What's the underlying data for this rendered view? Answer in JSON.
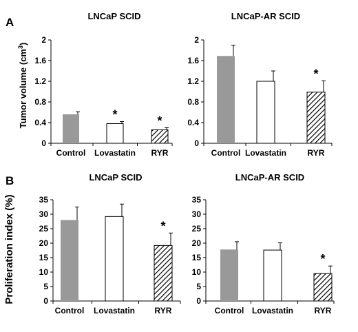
{
  "figure": {
    "panel_a_label": "A",
    "panel_b_label": "B",
    "a_ylabel_main": "Tumor volume (cm",
    "a_ylabel_sup": "3",
    "a_ylabel_close": ")",
    "b_ylabel": "Proliferation index (%)"
  },
  "colors": {
    "gray_fill": "#999999",
    "white_fill": "#ffffff",
    "axis": "#000000"
  },
  "chart_data": [
    {
      "id": "a1",
      "panel": "A",
      "type": "bar",
      "title": "LNCaP SCID",
      "categories": [
        "Control",
        "Lovastatin",
        "RYR"
      ],
      "values": [
        0.56,
        0.38,
        0.26
      ],
      "errors": [
        0.05,
        0.04,
        0.04
      ],
      "fills": [
        "gray",
        "white",
        "hatch"
      ],
      "significance": [
        "",
        "*",
        "*"
      ],
      "ylim": [
        0,
        2
      ],
      "yticks": [
        0,
        0.4,
        0.8,
        1.2,
        1.6,
        2
      ],
      "ytick_labels": [
        "0",
        "0.4",
        "0.8",
        "1.2",
        "1.6",
        "2"
      ]
    },
    {
      "id": "a2",
      "panel": "A",
      "type": "bar",
      "title": "LNCaP-AR SCID",
      "categories": [
        "Control",
        "Lovastatin",
        "RYR"
      ],
      "values": [
        1.69,
        1.2,
        0.99
      ],
      "errors": [
        0.21,
        0.2,
        0.22
      ],
      "fills": [
        "gray",
        "white",
        "hatch"
      ],
      "significance": [
        "",
        "",
        "*"
      ],
      "ylim": [
        0,
        2
      ],
      "yticks": [
        0,
        0.4,
        0.8,
        1.2,
        1.6,
        2
      ],
      "ytick_labels": [
        "0",
        "0.4",
        "0.8",
        "1.2",
        "1.6",
        "2"
      ]
    },
    {
      "id": "b1",
      "panel": "B",
      "type": "bar",
      "title": "LNCaP SCID",
      "categories": [
        "Control",
        "Lovastatin",
        "RYR"
      ],
      "values": [
        28,
        29.2,
        19.2
      ],
      "errors": [
        4.5,
        4.3,
        4.3
      ],
      "fills": [
        "gray",
        "white",
        "hatch"
      ],
      "significance": [
        "",
        "",
        "*"
      ],
      "ylim": [
        0,
        35
      ],
      "yticks": [
        0,
        5,
        10,
        15,
        20,
        25,
        30,
        35
      ],
      "ytick_labels": [
        "0",
        "5",
        "10",
        "15",
        "20",
        "25",
        "30",
        "35"
      ]
    },
    {
      "id": "b2",
      "panel": "B",
      "type": "bar",
      "title": "LNCaP-AR SCID",
      "categories": [
        "Control",
        "Lovastatin",
        "RYR"
      ],
      "values": [
        17.8,
        17.6,
        9.5
      ],
      "errors": [
        2.7,
        2.5,
        2.6
      ],
      "fills": [
        "gray",
        "white",
        "hatch"
      ],
      "significance": [
        "",
        "",
        "*"
      ],
      "ylim": [
        0,
        35
      ],
      "yticks": [
        0,
        5,
        10,
        15,
        20,
        25,
        30,
        35
      ],
      "ytick_labels": [
        "0",
        "5",
        "10",
        "15",
        "20",
        "25",
        "30",
        "35"
      ]
    }
  ]
}
